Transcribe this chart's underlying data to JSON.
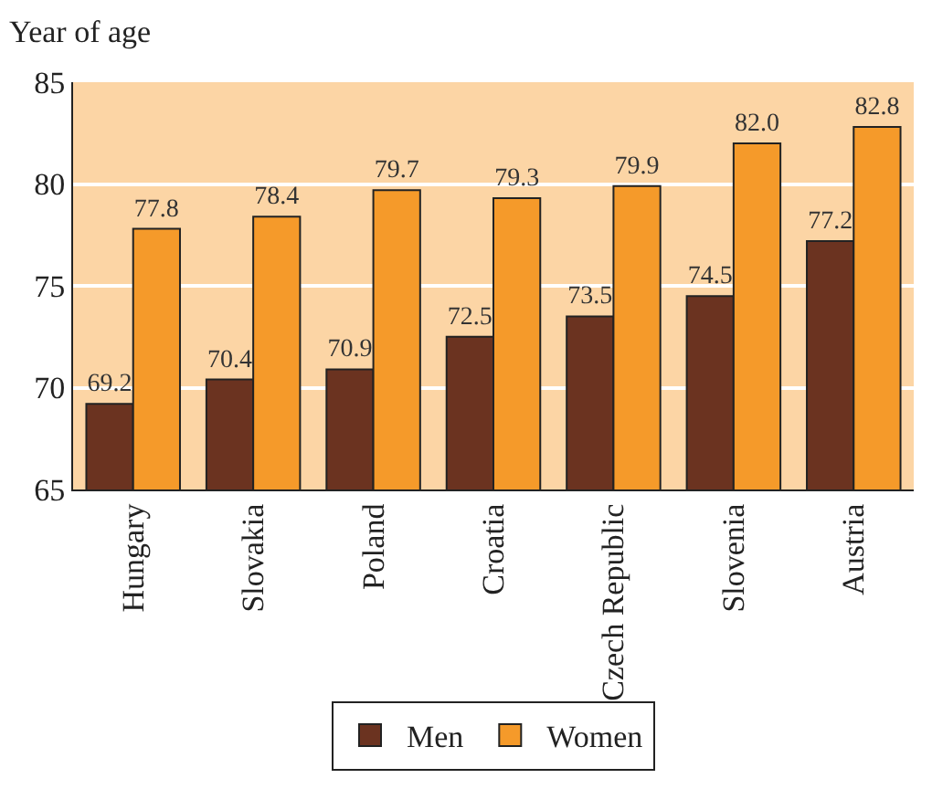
{
  "chart_data": {
    "type": "bar",
    "ylabel": "Year of age",
    "categories": [
      "Hungary",
      "Slovakia",
      "Poland",
      "Croatia",
      "Czech Republic",
      "Slovenia",
      "Austria"
    ],
    "series": [
      {
        "name": "Men",
        "color": "#6b3320",
        "values": [
          69.2,
          70.4,
          70.9,
          72.5,
          73.5,
          74.5,
          77.2
        ],
        "value_labels": [
          "69.2",
          "70.4",
          "70.9",
          "72.5",
          "73.5",
          "74.5",
          "77.2"
        ]
      },
      {
        "name": "Women",
        "color": "#f59a2a",
        "values": [
          77.8,
          78.4,
          79.7,
          79.3,
          79.9,
          82.0,
          82.8
        ],
        "value_labels": [
          "77.8",
          "78.4",
          "79.7",
          "79.3",
          "79.9",
          "82.0",
          "82.8"
        ]
      }
    ],
    "ylim": [
      65,
      85
    ],
    "yticks": [
      65,
      70,
      75,
      80,
      85
    ],
    "grid": "y",
    "legend": "bottom"
  }
}
